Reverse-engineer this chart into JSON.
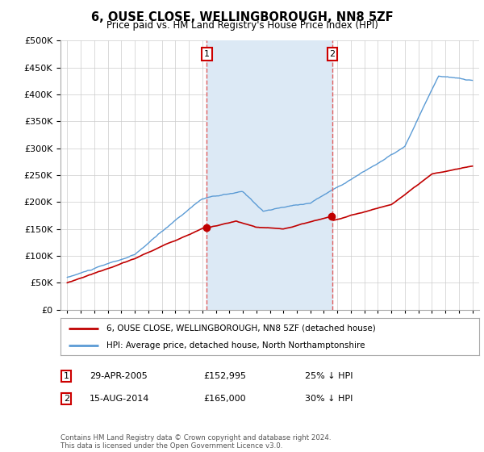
{
  "title": "6, OUSE CLOSE, WELLINGBOROUGH, NN8 5ZF",
  "subtitle": "Price paid vs. HM Land Registry's House Price Index (HPI)",
  "ytick_values": [
    0,
    50000,
    100000,
    150000,
    200000,
    250000,
    300000,
    350000,
    400000,
    450000,
    500000
  ],
  "ylim": [
    0,
    500000
  ],
  "x_start_year": 1995,
  "x_end_year": 2025,
  "hpi_color": "#5b9bd5",
  "price_color": "#c00000",
  "shade_color": "#dce9f5",
  "dashed_color": "#e06060",
  "marker1_year": 2005.33,
  "marker2_year": 2014.62,
  "sale1_price": 152995,
  "sale2_price": 165000,
  "legend_label1": "6, OUSE CLOSE, WELLINGBOROUGH, NN8 5ZF (detached house)",
  "legend_label2": "HPI: Average price, detached house, North Northamptonshire",
  "annotation1_date": "29-APR-2005",
  "annotation1_price": "£152,995",
  "annotation1_hpi": "25% ↓ HPI",
  "annotation2_date": "15-AUG-2014",
  "annotation2_price": "£165,000",
  "annotation2_hpi": "30% ↓ HPI",
  "footnote": "Contains HM Land Registry data © Crown copyright and database right 2024.\nThis data is licensed under the Open Government Licence v3.0.",
  "background_color": "#ffffff",
  "grid_color": "#cccccc"
}
